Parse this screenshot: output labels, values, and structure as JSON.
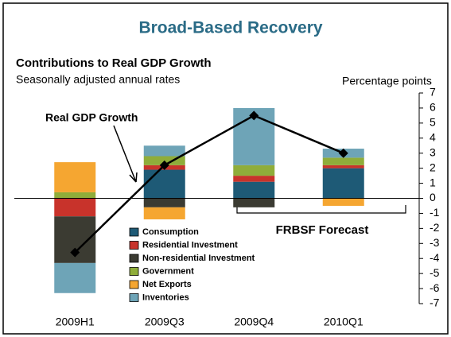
{
  "chart_data": {
    "type": "bar",
    "title": "Broad-Based Recovery",
    "subtitle": "Contributions to Real GDP Growth",
    "note": "Seasonally adjusted annual rates",
    "y_label": "Percentage points",
    "annotations": [
      "FRBSF Forecast"
    ],
    "categories": [
      "2009H1",
      "2009Q3",
      "2009Q4",
      "2010Q1"
    ],
    "stacked": true,
    "series": [
      {
        "name": "Consumption",
        "color": "#1e5a76",
        "values": [
          0,
          1.9,
          1.1,
          2.0
        ]
      },
      {
        "name": "Residential Investment",
        "color": "#c8332b",
        "values": [
          -1.2,
          0.3,
          0.4,
          0.2
        ]
      },
      {
        "name": "Non-residential Investment",
        "color": "#3b3b32",
        "values": [
          -3.1,
          -0.6,
          -0.6,
          0
        ]
      },
      {
        "name": "Government",
        "color": "#8fad3a",
        "values": [
          0.4,
          0.6,
          0.7,
          0.5
        ]
      },
      {
        "name": "Net Exports",
        "color": "#f5a631",
        "values": [
          2.0,
          -0.8,
          0,
          -0.5
        ]
      },
      {
        "name": "Inventories",
        "color": "#6ea4b7",
        "values": [
          -2.0,
          0.7,
          3.8,
          0.6
        ]
      },
      {
        "name": "Real GDP Growth",
        "type": "line",
        "color": "#000000",
        "values": [
          -3.6,
          2.2,
          5.5,
          3.0
        ]
      }
    ],
    "ylim": [
      -7,
      7
    ],
    "yticks": [
      -7,
      -6,
      -5,
      -4,
      -3,
      -2,
      -1,
      0,
      1,
      2,
      3,
      4,
      5,
      6,
      7
    ]
  }
}
